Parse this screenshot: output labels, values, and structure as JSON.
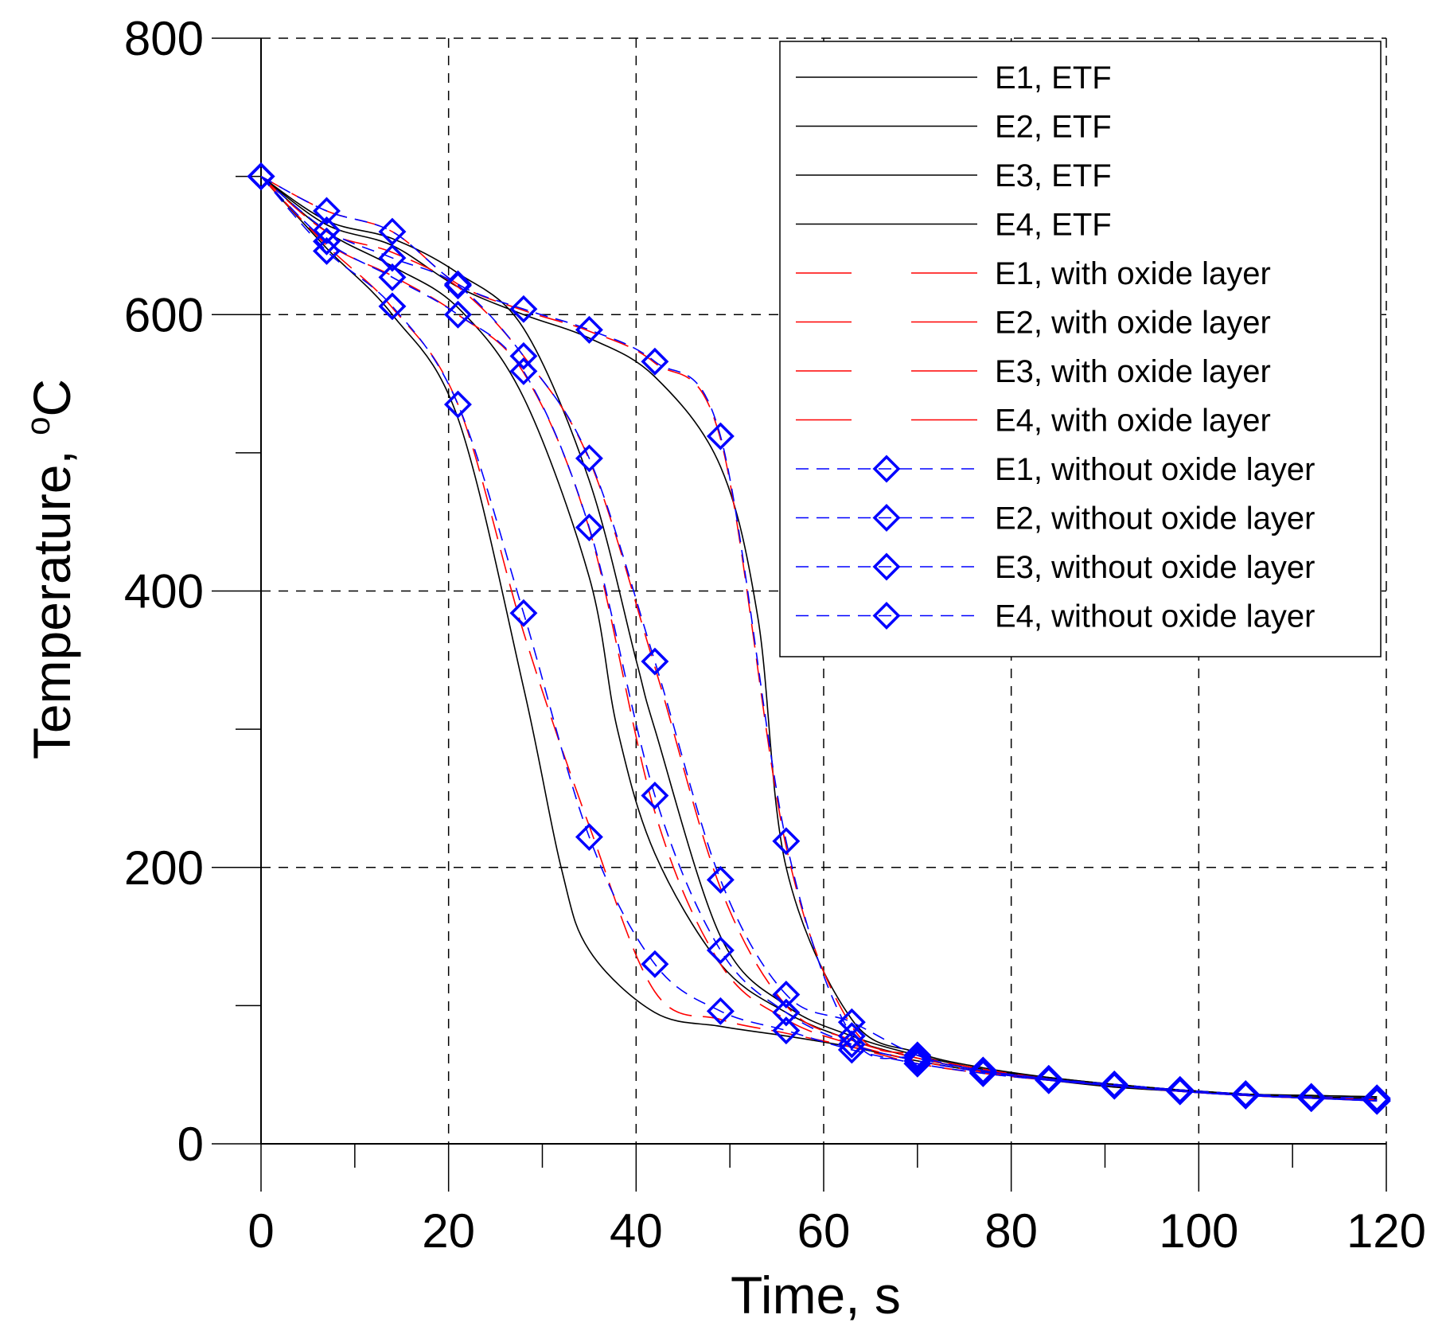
{
  "chart_data": {
    "type": "line",
    "title": "",
    "xlabel": "Time, s",
    "ylabel_main": "Temperature, ",
    "ylabel_sup": "o",
    "ylabel_unit": "C",
    "xlim": [
      0,
      120
    ],
    "ylim": [
      0,
      800
    ],
    "x_ticks": [
      0,
      20,
      40,
      60,
      80,
      100,
      120
    ],
    "y_ticks": [
      0,
      200,
      400,
      600,
      800
    ],
    "x_tick_labels": [
      "0",
      "20",
      "40",
      "60",
      "80",
      "100",
      "120"
    ],
    "y_tick_labels": [
      "0",
      "200",
      "400",
      "600",
      "800"
    ],
    "grid": "dashed",
    "legend_position": "top-right",
    "colors": {
      "etf": "#000000",
      "with_oxide": "#ff0000",
      "without_oxide": "#0000ff",
      "grid": "#000000"
    },
    "series": [
      {
        "name": "E1, ETF",
        "group": "etf",
        "x": [
          0,
          7,
          14,
          21,
          28,
          32,
          35,
          42,
          49,
          56,
          63,
          70,
          77,
          84,
          91,
          98,
          105,
          112,
          119
        ],
        "y": [
          700,
          648,
          600,
          525,
          330,
          200,
          140,
          95,
          85,
          78,
          70,
          60,
          52,
          46,
          41,
          38,
          35,
          33,
          32
        ]
      },
      {
        "name": "E2, ETF",
        "group": "etf",
        "x": [
          0,
          7,
          14,
          21,
          28,
          35,
          38,
          42,
          49,
          56,
          63,
          70,
          77,
          84,
          91,
          98,
          105,
          112,
          119
        ],
        "y": [
          700,
          660,
          635,
          605,
          540,
          410,
          300,
          210,
          130,
          95,
          75,
          62,
          53,
          47,
          42,
          39,
          36,
          34,
          33
        ]
      },
      {
        "name": "E3, ETF",
        "group": "etf",
        "x": [
          0,
          7,
          14,
          21,
          28,
          35,
          40,
          42,
          49,
          56,
          63,
          70,
          77,
          84,
          91,
          98,
          105,
          112,
          119
        ],
        "y": [
          700,
          668,
          655,
          630,
          590,
          480,
          350,
          300,
          150,
          100,
          78,
          64,
          54,
          48,
          43,
          39,
          36,
          35,
          34
        ]
      },
      {
        "name": "E4, ETF",
        "group": "etf",
        "x": [
          0,
          7,
          14,
          21,
          28,
          35,
          42,
          49,
          53,
          56,
          63,
          70,
          77,
          84,
          91,
          98,
          105,
          112,
          119
        ],
        "y": [
          700,
          665,
          650,
          620,
          600,
          583,
          555,
          490,
          380,
          200,
          90,
          66,
          55,
          48,
          43,
          39,
          36,
          35,
          34
        ]
      },
      {
        "name": "E1, with oxide layer",
        "group": "with_oxide",
        "x": [
          0,
          7,
          14,
          21,
          28,
          35,
          42,
          49,
          56,
          63,
          70,
          77,
          84,
          91,
          98,
          105,
          112,
          119
        ],
        "y": [
          700,
          650,
          605,
          535,
          370,
          230,
          110,
          90,
          80,
          70,
          58,
          51,
          46,
          42,
          38,
          35,
          33,
          32
        ]
      },
      {
        "name": "E2, with oxide layer",
        "group": "with_oxide",
        "x": [
          0,
          7,
          14,
          21,
          28,
          35,
          42,
          49,
          56,
          63,
          70,
          77,
          84,
          91,
          98,
          105,
          112,
          119
        ],
        "y": [
          700,
          652,
          628,
          600,
          558,
          445,
          240,
          130,
          90,
          72,
          60,
          52,
          46,
          42,
          38,
          35,
          33,
          31
        ]
      },
      {
        "name": "E3, with oxide layer",
        "group": "with_oxide",
        "x": [
          0,
          7,
          14,
          21,
          28,
          35,
          42,
          49,
          56,
          63,
          70,
          77,
          84,
          91,
          98,
          105,
          112,
          119
        ],
        "y": [
          700,
          660,
          645,
          620,
          570,
          495,
          345,
          185,
          100,
          75,
          62,
          53,
          47,
          42,
          38,
          35,
          33,
          32
        ]
      },
      {
        "name": "E4, with oxide layer",
        "group": "with_oxide",
        "x": [
          0,
          7,
          14,
          21,
          28,
          35,
          42,
          49,
          56,
          63,
          70,
          77,
          84,
          91,
          98,
          105,
          112,
          119
        ],
        "y": [
          700,
          675,
          660,
          622,
          603,
          588,
          565,
          510,
          215,
          85,
          64,
          54,
          47,
          42,
          38,
          35,
          33,
          32
        ]
      },
      {
        "name": "E1, without oxide layer",
        "group": "without_oxide",
        "x": [
          0,
          7,
          14,
          21,
          28,
          35,
          42,
          49,
          56,
          63,
          70,
          77,
          84,
          91,
          98,
          105,
          112,
          119
        ],
        "y": [
          700,
          646,
          606,
          535,
          384,
          222,
          130,
          96,
          82,
          68,
          58,
          51,
          46,
          42,
          38,
          35,
          33,
          31
        ]
      },
      {
        "name": "E2, without oxide layer",
        "group": "without_oxide",
        "x": [
          0,
          7,
          14,
          21,
          28,
          35,
          42,
          49,
          56,
          63,
          70,
          77,
          84,
          91,
          98,
          105,
          112,
          119
        ],
        "y": [
          700,
          653,
          627,
          600,
          559,
          446,
          252,
          140,
          95,
          72,
          60,
          52,
          46,
          42,
          38,
          35,
          33,
          31
        ]
      },
      {
        "name": "E3, without oxide layer",
        "group": "without_oxide",
        "x": [
          0,
          7,
          14,
          21,
          28,
          35,
          42,
          49,
          56,
          63,
          70,
          77,
          84,
          91,
          98,
          105,
          112,
          119
        ],
        "y": [
          700,
          661,
          641,
          621,
          570,
          496,
          349,
          191,
          108,
          88,
          64,
          53,
          47,
          43,
          39,
          36,
          34,
          33
        ]
      },
      {
        "name": "E4, without oxide layer",
        "group": "without_oxide",
        "x": [
          0,
          7,
          14,
          21,
          28,
          35,
          42,
          49,
          56,
          63,
          70,
          77,
          84,
          91,
          98,
          105,
          112,
          119
        ],
        "y": [
          700,
          675,
          660,
          622,
          604,
          589,
          566,
          512,
          219,
          78,
          62,
          53,
          47,
          42,
          38,
          35,
          33,
          32
        ]
      }
    ]
  }
}
